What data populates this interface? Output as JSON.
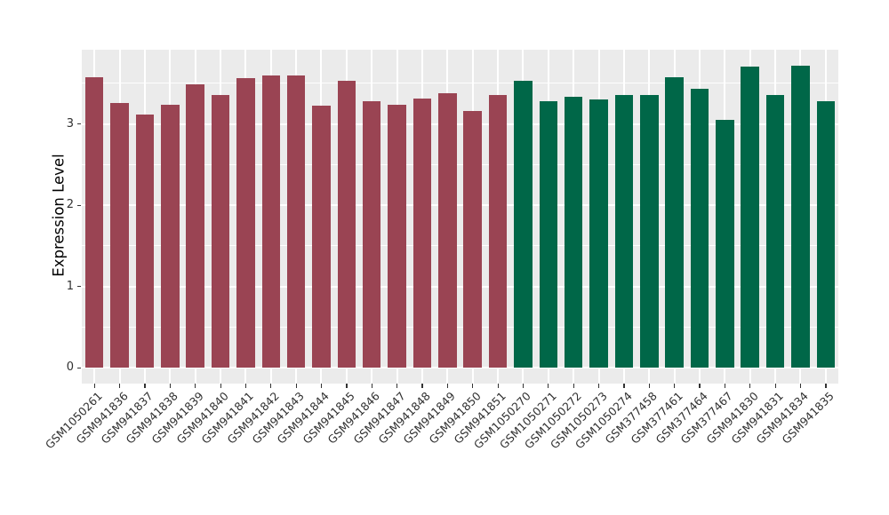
{
  "chart_data": {
    "type": "bar",
    "title": "",
    "xlabel": "",
    "ylabel": "Expression Level",
    "ylim": [
      0,
      3.91
    ],
    "yticks": [
      0,
      1,
      2,
      3
    ],
    "grid": "on",
    "legend_position": "none",
    "panel_bg": "#EBEBEB",
    "grid_color": "#FFFFFF",
    "tick_color": "#333333",
    "axis_text_color": "#303030",
    "group_colors": {
      "group1": "#9A4453",
      "group2": "#006748"
    },
    "categories": [
      "GSM1050261",
      "GSM941836",
      "GSM941837",
      "GSM941838",
      "GSM941839",
      "GSM941840",
      "GSM941841",
      "GSM941842",
      "GSM941843",
      "GSM941844",
      "GSM941845",
      "GSM941846",
      "GSM941847",
      "GSM941848",
      "GSM941849",
      "GSM941850",
      "GSM941851",
      "GSM1050270",
      "GSM1050271",
      "GSM1050272",
      "GSM1050273",
      "GSM1050274",
      "GSM377458",
      "GSM377461",
      "GSM377464",
      "GSM377467",
      "GSM941830",
      "GSM941831",
      "GSM941834",
      "GSM941835"
    ],
    "values": [
      3.57,
      3.26,
      3.12,
      3.23,
      3.49,
      3.35,
      3.56,
      3.6,
      3.6,
      3.22,
      3.53,
      3.28,
      3.23,
      3.31,
      3.38,
      3.16,
      3.35,
      3.53,
      3.28,
      3.33,
      3.3,
      3.35,
      3.35,
      3.57,
      3.43,
      3.05,
      3.71,
      3.35,
      3.72,
      3.28
    ],
    "groups": [
      "group1",
      "group1",
      "group1",
      "group1",
      "group1",
      "group1",
      "group1",
      "group1",
      "group1",
      "group1",
      "group1",
      "group1",
      "group1",
      "group1",
      "group1",
      "group1",
      "group1",
      "group2",
      "group2",
      "group2",
      "group2",
      "group2",
      "group2",
      "group2",
      "group2",
      "group2",
      "group2",
      "group2",
      "group2",
      "group2"
    ]
  }
}
